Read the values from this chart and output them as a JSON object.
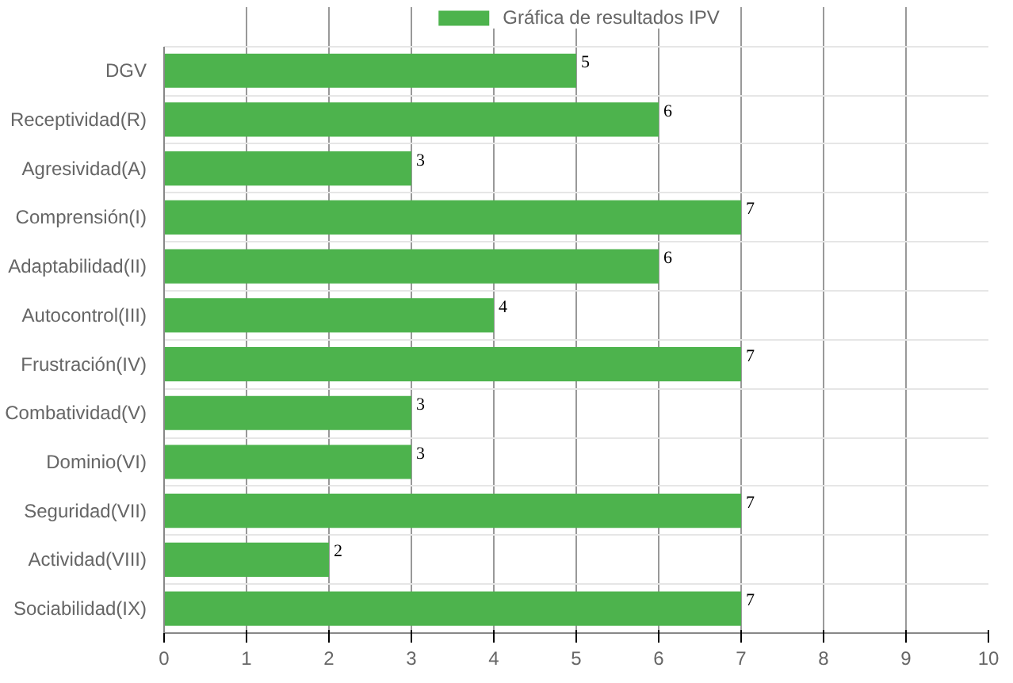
{
  "chart_data": {
    "type": "bar",
    "orientation": "horizontal",
    "categories": [
      "DGV",
      "Receptividad(R)",
      "Agresividad(A)",
      "Comprensión(I)",
      "Adaptabilidad(II)",
      "Autocontrol(III)",
      "Frustración(IV)",
      "Combatividad(V)",
      "Dominio(VI)",
      "Seguridad(VII)",
      "Actividad(VIII)",
      "Sociabilidad(IX)"
    ],
    "series": [
      {
        "name": "Gráfica de resultados IPV",
        "color": "#4db34d",
        "values": [
          5,
          6,
          3,
          7,
          6,
          4,
          7,
          3,
          3,
          7,
          2,
          7
        ]
      }
    ],
    "xlim": [
      0,
      10
    ],
    "xticks": [
      0,
      1,
      2,
      3,
      4,
      5,
      6,
      7,
      8,
      9,
      10
    ],
    "grid": true,
    "legend": "top",
    "data_labels": true
  }
}
